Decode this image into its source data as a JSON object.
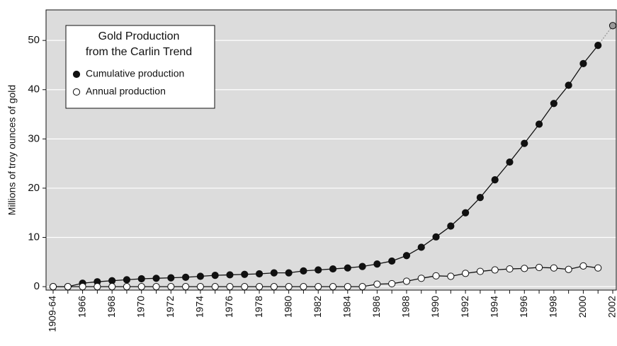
{
  "chart_data": {
    "type": "line",
    "y_label": "Millions of troy ounces of gold",
    "legend_title": [
      "Gold Production",
      "from the Carlin Trend"
    ],
    "categories": [
      "1909-64",
      null,
      "1966",
      null,
      "1968",
      null,
      "1970",
      null,
      "1972",
      null,
      "1974",
      null,
      "1976",
      null,
      "1978",
      null,
      "1980",
      null,
      "1982",
      null,
      "1984",
      null,
      "1986",
      null,
      "1988",
      null,
      "1990",
      null,
      "1992",
      null,
      "1994",
      null,
      "1996",
      null,
      "1998",
      null,
      "2000",
      null,
      "2002"
    ],
    "series": [
      {
        "name": "Cumulative production",
        "color": "#111111",
        "marker_fill": "#111111",
        "projected_color": "#999999",
        "values": [
          0,
          0,
          0.7,
          1.0,
          1.2,
          1.4,
          1.6,
          1.7,
          1.8,
          1.9,
          2.1,
          2.3,
          2.4,
          2.5,
          2.6,
          2.8,
          2.8,
          3.2,
          3.4,
          3.6,
          3.8,
          4.1,
          4.6,
          5.2,
          6.3,
          8.0,
          10.1,
          12.3,
          15.0,
          18.1,
          21.7,
          25.3,
          29.1,
          33.0,
          37.2,
          40.9,
          45.3,
          49.0,
          53.0
        ]
      },
      {
        "name": "Annual production",
        "color": "#111111",
        "marker_fill": "#ffffff",
        "values": [
          0,
          0,
          0,
          0,
          0,
          0,
          0,
          0,
          0,
          0,
          0,
          0,
          0,
          0,
          0,
          0,
          0,
          0,
          0,
          0,
          0,
          0,
          0.5,
          0.6,
          1.1,
          1.7,
          2.2,
          2.1,
          2.7,
          3.1,
          3.4,
          3.6,
          3.7,
          3.9,
          3.8,
          3.5,
          4.2,
          3.8,
          null
        ]
      }
    ],
    "ylim": [
      -0.7,
      56.2
    ],
    "yticks": [
      0,
      10,
      20,
      30,
      40,
      50
    ],
    "grid": true,
    "plot_color": "#dcdcdc",
    "legend_position": "upper left"
  }
}
